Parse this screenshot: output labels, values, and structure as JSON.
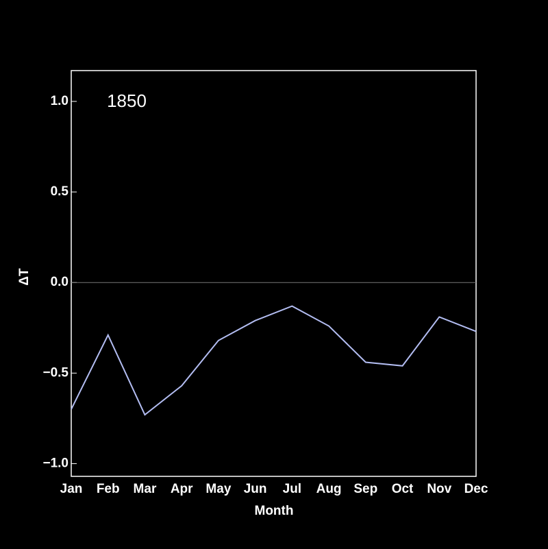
{
  "chart_data": {
    "type": "line",
    "annotation": "1850",
    "xlabel": "Month",
    "ylabel": "ΔT",
    "categories": [
      "Jan",
      "Feb",
      "Mar",
      "Apr",
      "May",
      "Jun",
      "Jul",
      "Aug",
      "Sep",
      "Oct",
      "Nov",
      "Dec"
    ],
    "series": [
      {
        "color": "#b3bdf2",
        "values": [
          -0.7,
          -0.29,
          -0.73,
          -0.57,
          -0.32,
          -0.21,
          -0.13,
          -0.24,
          -0.44,
          -0.46,
          -0.19,
          -0.27
        ]
      }
    ],
    "ylim": [
      -1.07,
      1.17
    ],
    "yticks": [
      {
        "value": -1,
        "label": "−1.0"
      },
      {
        "value": -0.5,
        "label": "−0.5"
      },
      {
        "value": 0,
        "label": "0.0"
      },
      0.5,
      {
        "value": 1,
        "label": "1.0"
      }
    ],
    "annotation_color": "#e00000"
  }
}
